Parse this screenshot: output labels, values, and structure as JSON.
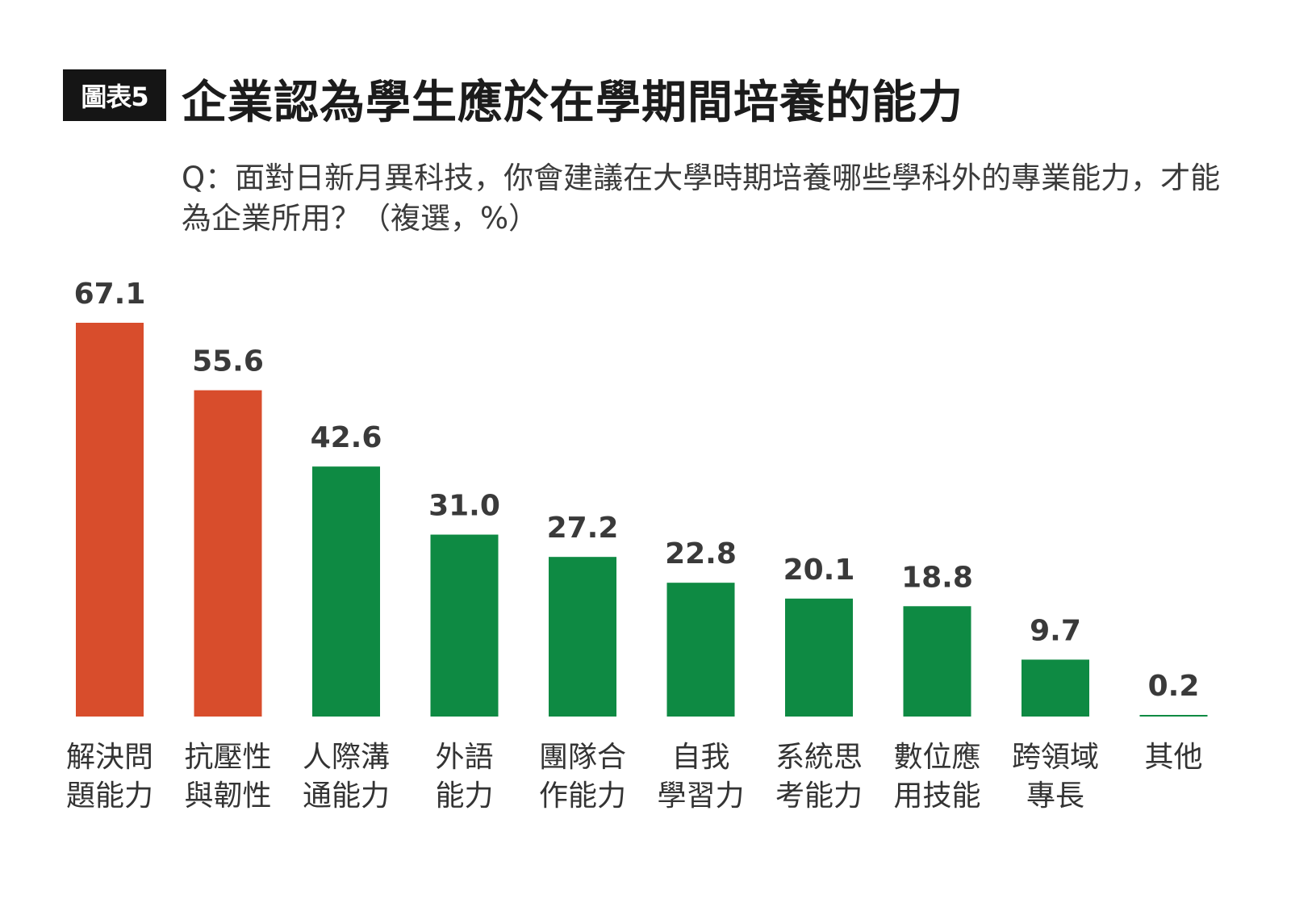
{
  "header": {
    "tag": "圖表5",
    "title": "企業認為學生應於在學期間培養的能力",
    "subtitle": "Q：面對日新月異科技，你會建議在大學時期培養哪些學科外的專業能力，才能為企業所用？（複選，%）"
  },
  "colors": {
    "highlight": "#D84D2C",
    "primary": "#0E8A43",
    "tag_bg": "#151515"
  },
  "chart_data": {
    "type": "bar",
    "title": "企業認為學生應於在學期間培養的能力",
    "xlabel": "",
    "ylabel": "",
    "ylim": [
      0,
      70
    ],
    "grid": false,
    "legend": "none",
    "categories": [
      [
        "解決問",
        "題能力"
      ],
      [
        "抗壓性",
        "與韌性"
      ],
      [
        "人際溝",
        "通能力"
      ],
      [
        "外語",
        "能力"
      ],
      [
        "團隊合",
        "作能力"
      ],
      [
        "自我",
        "學習力"
      ],
      [
        "系統思",
        "考能力"
      ],
      [
        "數位應",
        "用技能"
      ],
      [
        "跨領域",
        "專長"
      ],
      [
        "其他"
      ]
    ],
    "values": [
      67.1,
      55.6,
      42.6,
      31.0,
      27.2,
      22.8,
      20.1,
      18.8,
      9.7,
      0.2
    ],
    "value_labels": [
      "67.1",
      "55.6",
      "42.6",
      "31.0",
      "27.2",
      "22.8",
      "20.1",
      "18.8",
      "9.7",
      "0.2"
    ],
    "bar_colors": [
      "#D84D2C",
      "#D84D2C",
      "#0E8A43",
      "#0E8A43",
      "#0E8A43",
      "#0E8A43",
      "#0E8A43",
      "#0E8A43",
      "#0E8A43",
      "#0E8A43"
    ]
  }
}
